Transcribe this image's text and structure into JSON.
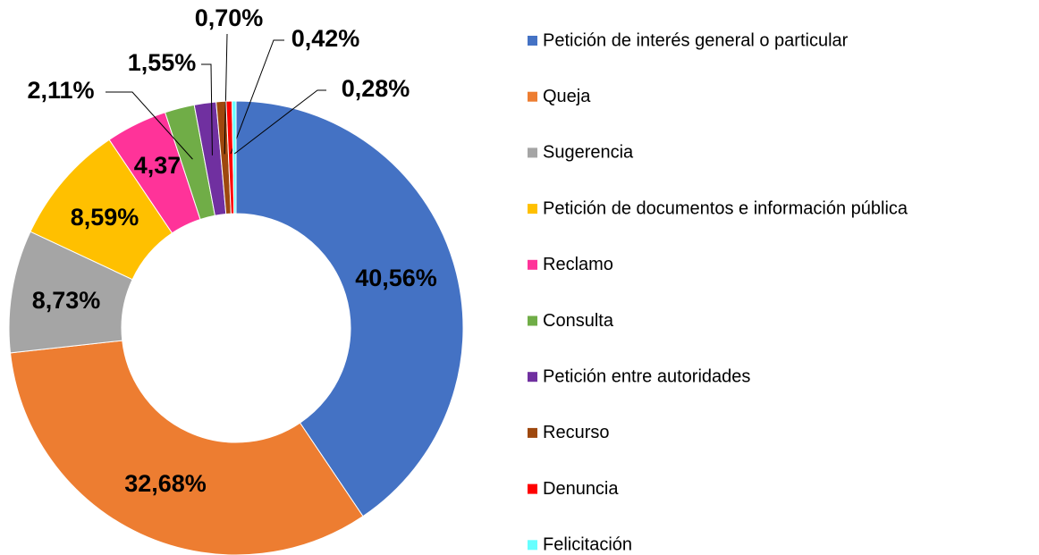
{
  "chart_data": {
    "type": "donut",
    "categories": [
      "Petición de interés general o particular",
      "Queja",
      "Sugerencia",
      "Petición de documentos e información pública",
      "Reclamo",
      "Consulta",
      "Petición entre autoridades",
      "Recurso",
      "Denuncia",
      "Felicitación"
    ],
    "values": [
      40.56,
      32.68,
      8.73,
      8.59,
      4.37,
      2.11,
      1.55,
      0.7,
      0.42,
      0.28
    ],
    "value_labels": [
      "40,56%",
      "32,68%",
      "8,73%",
      "8,59%",
      "4,37%",
      "2,11%",
      "1,55%",
      "0,70%",
      "0,42%",
      "0,28%"
    ],
    "colors": [
      "#4472c4",
      "#ed7d31",
      "#a5a5a5",
      "#ffc000",
      "#ff3399",
      "#70ad47",
      "#7030a0",
      "#9e480e",
      "#ff0000",
      "#66ffff"
    ],
    "legend": "right"
  }
}
